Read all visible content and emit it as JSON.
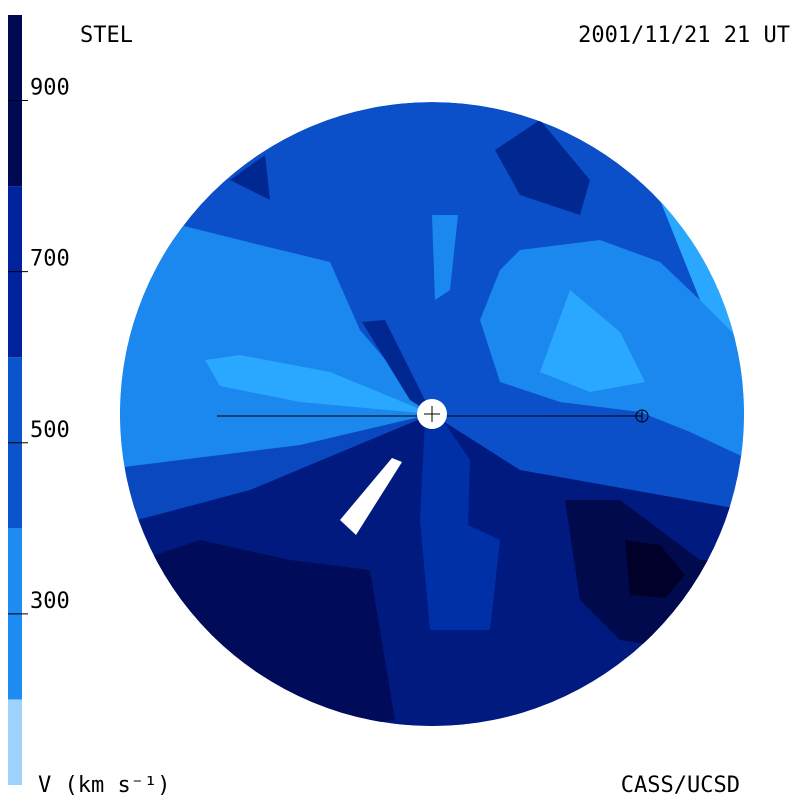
{
  "header": {
    "title": "STEL",
    "date": "2001/11/21 21 UT"
  },
  "footer": {
    "axis_label": "V (km s⁻¹)",
    "credit": "CASS/UCSD"
  },
  "colorbar": {
    "lim": [
      100,
      1000
    ],
    "ticks": [
      300,
      500,
      700,
      900
    ],
    "levels": [
      100,
      200,
      400,
      600,
      800,
      1000
    ],
    "colors": [
      "#9fd2fa",
      "#1e8cf0",
      "#0b55cc",
      "#00229c",
      "#000a52"
    ]
  }
}
